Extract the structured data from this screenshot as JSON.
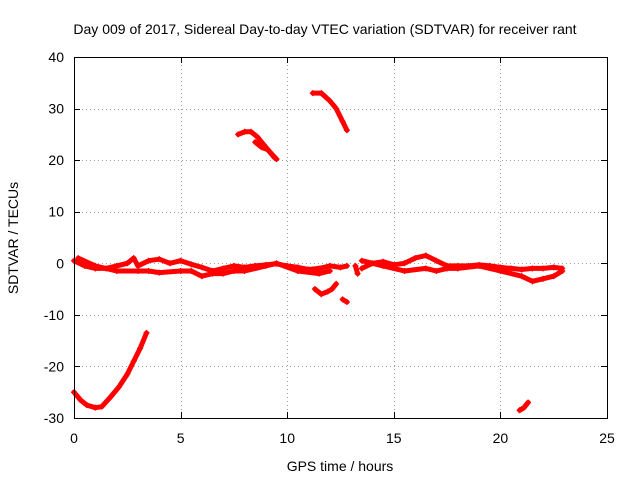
{
  "chart_data": {
    "type": "scatter",
    "title": "Day 009 of 2017, Sidereal Day-to-day VTEC variation (SDTVAR) for receiver rant",
    "xlabel": "GPS time / hours",
    "ylabel": "SDTVAR / TECUs",
    "xlim": [
      0,
      25
    ],
    "ylim": [
      -30,
      40
    ],
    "xticks": [
      0,
      5,
      10,
      15,
      20,
      25
    ],
    "yticks": [
      -30,
      -20,
      -10,
      0,
      10,
      20,
      30,
      40
    ],
    "xtick_labels": [
      "0",
      "5",
      "10",
      "15",
      "20",
      "25"
    ],
    "ytick_labels": [
      "-30",
      "-20",
      "-10",
      "0",
      "10",
      "20",
      "30",
      "40"
    ],
    "grid": true,
    "marker": "+",
    "series_color": "#ff0000",
    "series": [
      {
        "name": "arc-descending-start",
        "points": [
          [
            0,
            -25
          ],
          [
            0.3,
            -26.5
          ],
          [
            0.6,
            -27.5
          ],
          [
            1.0,
            -28
          ],
          [
            1.3,
            -27.8
          ],
          [
            1.7,
            -26
          ],
          [
            2.1,
            -24
          ],
          [
            2.5,
            -21.5
          ],
          [
            2.8,
            -19
          ],
          [
            3.1,
            -16.5
          ],
          [
            3.4,
            -13.5
          ]
        ]
      },
      {
        "name": "band-near-zero-a",
        "points": [
          [
            0,
            0.5
          ],
          [
            0.5,
            -0.5
          ],
          [
            1.0,
            -1
          ],
          [
            1.5,
            -1
          ],
          [
            2.0,
            -0.5
          ],
          [
            2.5,
            0
          ],
          [
            2.8,
            1
          ],
          [
            3.0,
            -0.5
          ],
          [
            3.5,
            0.5
          ],
          [
            4.0,
            0.8
          ],
          [
            4.5,
            0
          ],
          [
            5.0,
            0.5
          ],
          [
            5.5,
            -0.2
          ],
          [
            6.0,
            -0.8
          ],
          [
            6.5,
            -1.5
          ],
          [
            7.0,
            -1
          ],
          [
            7.5,
            -0.5
          ],
          [
            8.0,
            -0.8
          ],
          [
            8.5,
            -0.5
          ],
          [
            9.0,
            -0.3
          ],
          [
            9.5,
            -0.1
          ],
          [
            10.0,
            -0.5
          ],
          [
            10.5,
            -0.8
          ],
          [
            11.0,
            -1.2
          ],
          [
            11.5,
            -1
          ],
          [
            12.0,
            -0.5
          ],
          [
            12.5,
            -0.8
          ],
          [
            12.8,
            -0.5
          ]
        ]
      },
      {
        "name": "band-near-zero-b",
        "points": [
          [
            0.2,
            1
          ],
          [
            1.0,
            -0.5
          ],
          [
            2.0,
            -1.5
          ],
          [
            3.0,
            -1.5
          ],
          [
            3.5,
            -1.5
          ],
          [
            4.0,
            -1.8
          ],
          [
            5.0,
            -1.5
          ],
          [
            5.5,
            -1.5
          ],
          [
            6.0,
            -2.5
          ],
          [
            6.5,
            -2
          ],
          [
            7.0,
            -2
          ],
          [
            7.5,
            -1.5
          ],
          [
            8.0,
            -1.5
          ],
          [
            9.0,
            -0.5
          ],
          [
            9.5,
            0
          ],
          [
            10.5,
            -1.5
          ],
          [
            11.5,
            -2
          ],
          [
            12.0,
            -1.5
          ]
        ]
      },
      {
        "name": "arc-25-mid",
        "points": [
          [
            7.7,
            25
          ],
          [
            8.0,
            25.5
          ],
          [
            8.3,
            25.5
          ],
          [
            8.6,
            24.5
          ],
          [
            8.9,
            23
          ],
          [
            9.2,
            21.5
          ],
          [
            9.5,
            20.2
          ]
        ]
      },
      {
        "name": "arc-25-lower",
        "points": [
          [
            8.5,
            23.5
          ],
          [
            8.8,
            22.5
          ],
          [
            9.1,
            22
          ],
          [
            9.4,
            20.5
          ]
        ]
      },
      {
        "name": "arc-33",
        "points": [
          [
            11.2,
            33
          ],
          [
            11.6,
            33
          ],
          [
            12.0,
            31.5
          ],
          [
            12.3,
            30
          ],
          [
            12.6,
            27.5
          ],
          [
            12.8,
            25.8
          ]
        ]
      },
      {
        "name": "dip-minus-5",
        "points": [
          [
            11.3,
            -5
          ],
          [
            11.6,
            -6
          ],
          [
            11.9,
            -5.5
          ],
          [
            12.1,
            -5
          ],
          [
            12.3,
            -4
          ]
        ]
      },
      {
        "name": "dip-minus-7",
        "points": [
          [
            12.6,
            -7
          ],
          [
            12.8,
            -7.5
          ]
        ]
      },
      {
        "name": "isolated-crosses",
        "points": [
          [
            13.2,
            -0.5
          ],
          [
            13.3,
            -2
          ]
        ]
      },
      {
        "name": "band-near-zero-c",
        "points": [
          [
            13.5,
            -1
          ],
          [
            14.0,
            0
          ],
          [
            14.5,
            0.3
          ],
          [
            15.0,
            -0.3
          ],
          [
            15.5,
            0
          ],
          [
            16.0,
            1
          ],
          [
            16.5,
            1.5
          ],
          [
            17.0,
            0.5
          ],
          [
            17.5,
            -0.5
          ],
          [
            18.0,
            -0.5
          ],
          [
            18.5,
            -0.5
          ],
          [
            19.0,
            -0.3
          ],
          [
            19.5,
            -0.5
          ],
          [
            20.0,
            -0.8
          ],
          [
            20.5,
            -1
          ],
          [
            21.0,
            -1.2
          ],
          [
            21.5,
            -1
          ],
          [
            22.0,
            -1
          ],
          [
            22.5,
            -0.8
          ],
          [
            22.9,
            -1
          ]
        ]
      },
      {
        "name": "band-near-zero-d",
        "points": [
          [
            13.5,
            0.5
          ],
          [
            14.5,
            -0.5
          ],
          [
            15.5,
            -1.5
          ],
          [
            16.5,
            -1
          ],
          [
            17.0,
            -1.5
          ],
          [
            17.5,
            -1
          ],
          [
            18.0,
            -1
          ],
          [
            19.0,
            -0.5
          ],
          [
            20.0,
            -1.5
          ],
          [
            21.0,
            -2.5
          ],
          [
            21.5,
            -3.5
          ],
          [
            22.0,
            -3
          ],
          [
            22.5,
            -2.5
          ],
          [
            22.9,
            -1.5
          ]
        ]
      },
      {
        "name": "arc-end-minus-28",
        "points": [
          [
            20.9,
            -28.5
          ],
          [
            21.1,
            -28
          ],
          [
            21.3,
            -27
          ]
        ]
      }
    ]
  }
}
